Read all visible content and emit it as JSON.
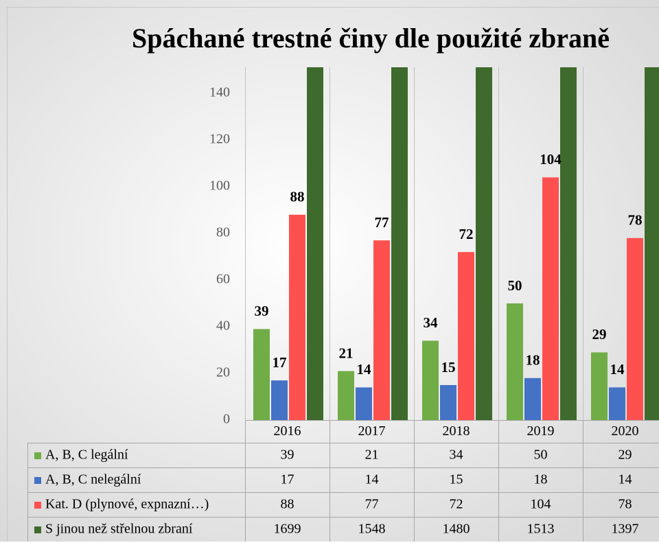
{
  "chart_data": {
    "type": "bar",
    "title": "Spáchané trestné činy dle použité zbraně",
    "categories": [
      "2016",
      "2017",
      "2018",
      "2019",
      "2020"
    ],
    "series": [
      {
        "name": "A, B, C legální",
        "color": "#70ad47",
        "values": [
          39,
          21,
          34,
          50,
          29
        ],
        "show_labels": true
      },
      {
        "name": "A, B, C nelegální",
        "color": "#4472c4",
        "values": [
          17,
          14,
          15,
          18,
          14
        ],
        "show_labels": true
      },
      {
        "name": "Kat. D (plynové, expnazní…)",
        "color": "#ff5050",
        "values": [
          88,
          77,
          72,
          104,
          78
        ],
        "show_labels": true
      },
      {
        "name": "S jinou než střelnou zbraní",
        "color": "#3f6a2d",
        "values": [
          1699,
          1548,
          1480,
          1513,
          1397
        ],
        "show_labels": false
      }
    ],
    "ylim": [
      0,
      150
    ],
    "yticks": [
      0,
      20,
      40,
      60,
      80,
      100,
      120,
      140
    ],
    "grid": false,
    "data_table": true
  }
}
